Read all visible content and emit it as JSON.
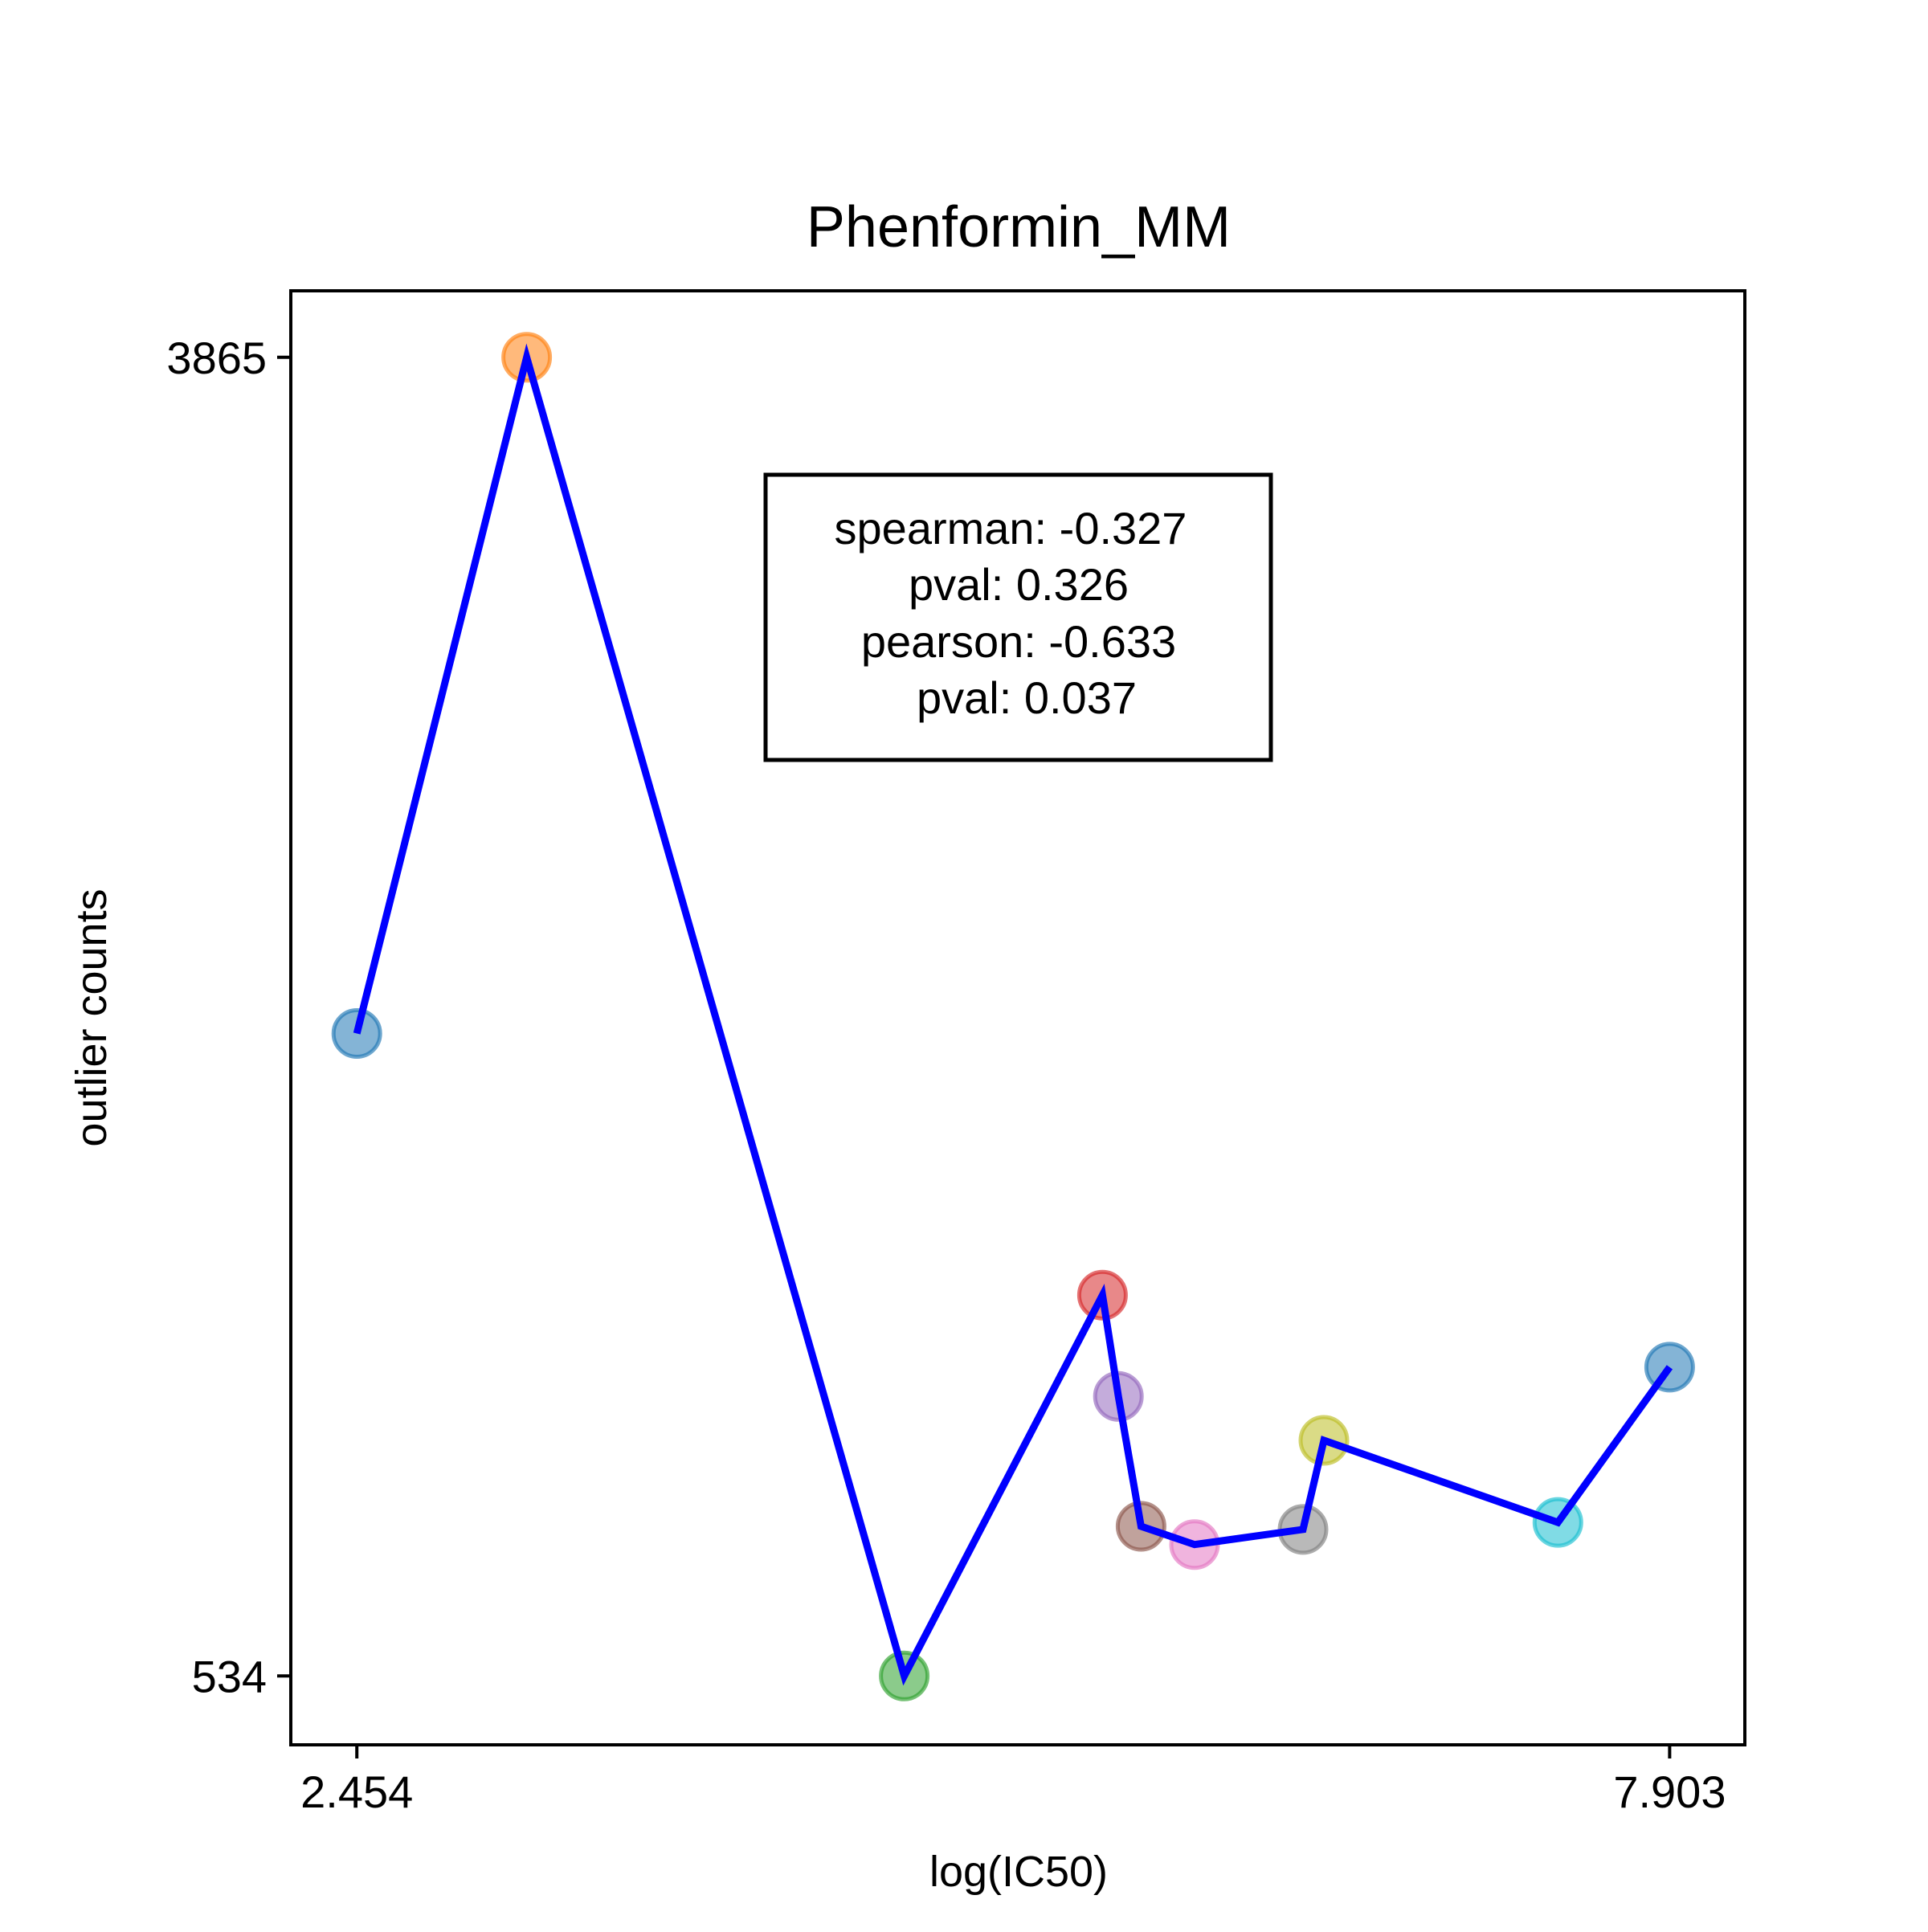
{
  "chart_data": {
    "type": "line",
    "title": "Phenformin_MM",
    "xlabel": "log(IC50)",
    "ylabel": "outlier counts",
    "x_ticks": [
      {
        "value": 2.454,
        "label": "2.454"
      },
      {
        "value": 7.903,
        "label": "7.903"
      }
    ],
    "y_ticks": [
      {
        "value": 534,
        "label": "534"
      },
      {
        "value": 3865,
        "label": "3865"
      }
    ],
    "xlim": [
      2.18,
      8.215
    ],
    "ylim": [
      360,
      4033
    ],
    "grid": false,
    "line_color": "#0000ff",
    "points": [
      {
        "x": 2.454,
        "y": 2157,
        "color": "#1f77b4"
      },
      {
        "x": 3.159,
        "y": 3865,
        "color": "#ff7f0e"
      },
      {
        "x": 4.726,
        "y": 534,
        "color": "#2ca02c"
      },
      {
        "x": 5.549,
        "y": 1496,
        "color": "#d62728"
      },
      {
        "x": 5.615,
        "y": 1240,
        "color": "#9467bd"
      },
      {
        "x": 5.709,
        "y": 912,
        "color": "#8c564b"
      },
      {
        "x": 5.931,
        "y": 866,
        "color": "#e377c2"
      },
      {
        "x": 6.381,
        "y": 904,
        "color": "#7f7f7f"
      },
      {
        "x": 6.468,
        "y": 1129,
        "color": "#bcbd22"
      },
      {
        "x": 7.439,
        "y": 922,
        "color": "#17becf"
      },
      {
        "x": 7.903,
        "y": 1314,
        "color": "#1f77b4"
      }
    ],
    "annotation": {
      "lines": [
        "spearman: -0.327",
        "pval: 0.326",
        "pearson: -0.633",
        "pval: 0.037"
      ],
      "placement": "top-center"
    }
  }
}
